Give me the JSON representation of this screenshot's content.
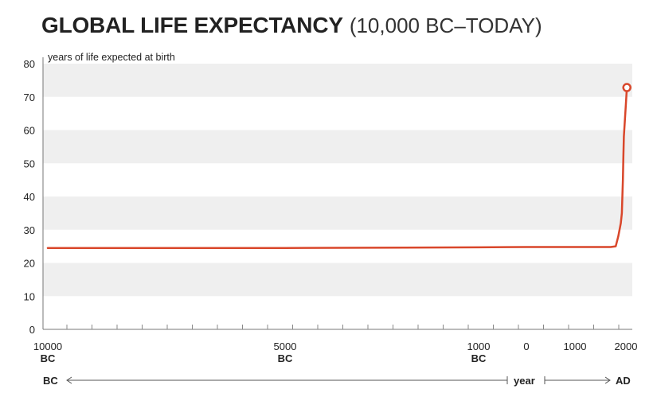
{
  "chart_data": {
    "type": "line",
    "title": "GLOBAL LIFE EXPECTANCY",
    "subtitle": "(10,000 BC–TODAY)",
    "ylabel": "years of life expected at birth",
    "xlabel": "year",
    "ylim": [
      0,
      80
    ],
    "yticks": [
      0,
      10,
      20,
      30,
      40,
      50,
      60,
      70,
      80
    ],
    "xticks": [
      {
        "value": -10000,
        "line1": "10000",
        "line2": "BC"
      },
      {
        "value": -5000,
        "line1": "5000",
        "line2": "BC"
      },
      {
        "value": -1000,
        "line1": "1000",
        "line2": "BC"
      },
      {
        "value": 0,
        "line1": "0",
        "line2": ""
      },
      {
        "value": 1000,
        "line1": "1000",
        "line2": ""
      },
      {
        "value": 2000,
        "line1": "2000",
        "line2": ""
      }
    ],
    "era_labels": {
      "left": "BC",
      "right": "AD"
    },
    "line_color": "#d9472b",
    "grid": "alternating horizontal bands",
    "series": [
      {
        "x": [
          -10000,
          -5000,
          -1000,
          0,
          1000,
          1700,
          1800,
          1850,
          1900,
          1920,
          1940,
          1950,
          1960,
          1980,
          2000,
          2019
        ],
        "values": [
          24.5,
          24.5,
          24.7,
          24.8,
          24.8,
          24.8,
          25,
          28,
          32,
          35,
          45,
          52,
          58,
          63,
          68,
          72.8
        ]
      }
    ]
  }
}
